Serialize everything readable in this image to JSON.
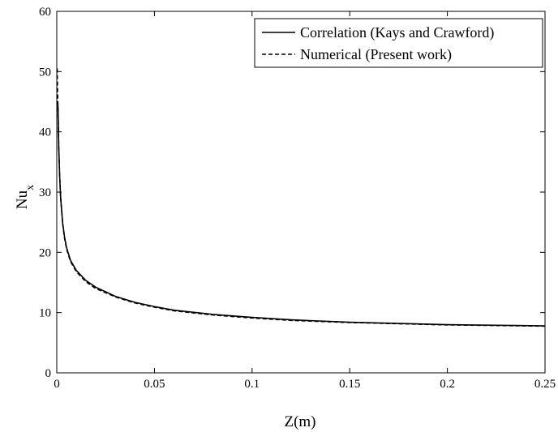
{
  "chart_data": {
    "type": "line",
    "xlabel": "Z(m)",
    "ylabel": {
      "main": "Nu",
      "sub": "x"
    },
    "xlim": [
      0,
      0.25
    ],
    "ylim": [
      0,
      60
    ],
    "x_ticks": [
      "0",
      "0.05",
      "0.1",
      "0.15",
      "0.2",
      "0.25"
    ],
    "y_ticks": [
      "0",
      "10",
      "20",
      "30",
      "40",
      "50",
      "60"
    ],
    "grid": false,
    "legend_position": "top-right",
    "series": [
      {
        "name": "Correlation (Kays and Crawford)",
        "style": "solid",
        "color": "#000000",
        "x": [
          0.0006,
          0.001,
          0.0015,
          0.002,
          0.003,
          0.004,
          0.005,
          0.007,
          0.01,
          0.015,
          0.02,
          0.03,
          0.04,
          0.05,
          0.06,
          0.08,
          0.1,
          0.12,
          0.15,
          0.175,
          0.2,
          0.225,
          0.25
        ],
        "y": [
          44.5,
          37.5,
          32.5,
          29.0,
          24.9,
          22.5,
          20.8,
          18.7,
          17.0,
          15.3,
          14.2,
          12.7,
          11.7,
          11.0,
          10.4,
          9.7,
          9.2,
          8.8,
          8.4,
          8.2,
          8.0,
          7.9,
          7.8
        ]
      },
      {
        "name": "Numerical (Present work)",
        "style": "dashed",
        "color": "#000000",
        "x": [
          0.0002,
          0.0004,
          0.0006,
          0.001,
          0.0015,
          0.002,
          0.003,
          0.004,
          0.005,
          0.007,
          0.01,
          0.015,
          0.02,
          0.03,
          0.04,
          0.05,
          0.06,
          0.08,
          0.1,
          0.12,
          0.15,
          0.175,
          0.2,
          0.225,
          0.25
        ],
        "y": [
          50.5,
          47.0,
          44.0,
          37.8,
          32.5,
          29.0,
          24.8,
          22.3,
          20.6,
          18.5,
          16.8,
          15.1,
          14.0,
          12.6,
          11.6,
          10.9,
          10.3,
          9.6,
          9.1,
          8.7,
          8.35,
          8.15,
          7.95,
          7.85,
          7.75
        ]
      }
    ]
  }
}
